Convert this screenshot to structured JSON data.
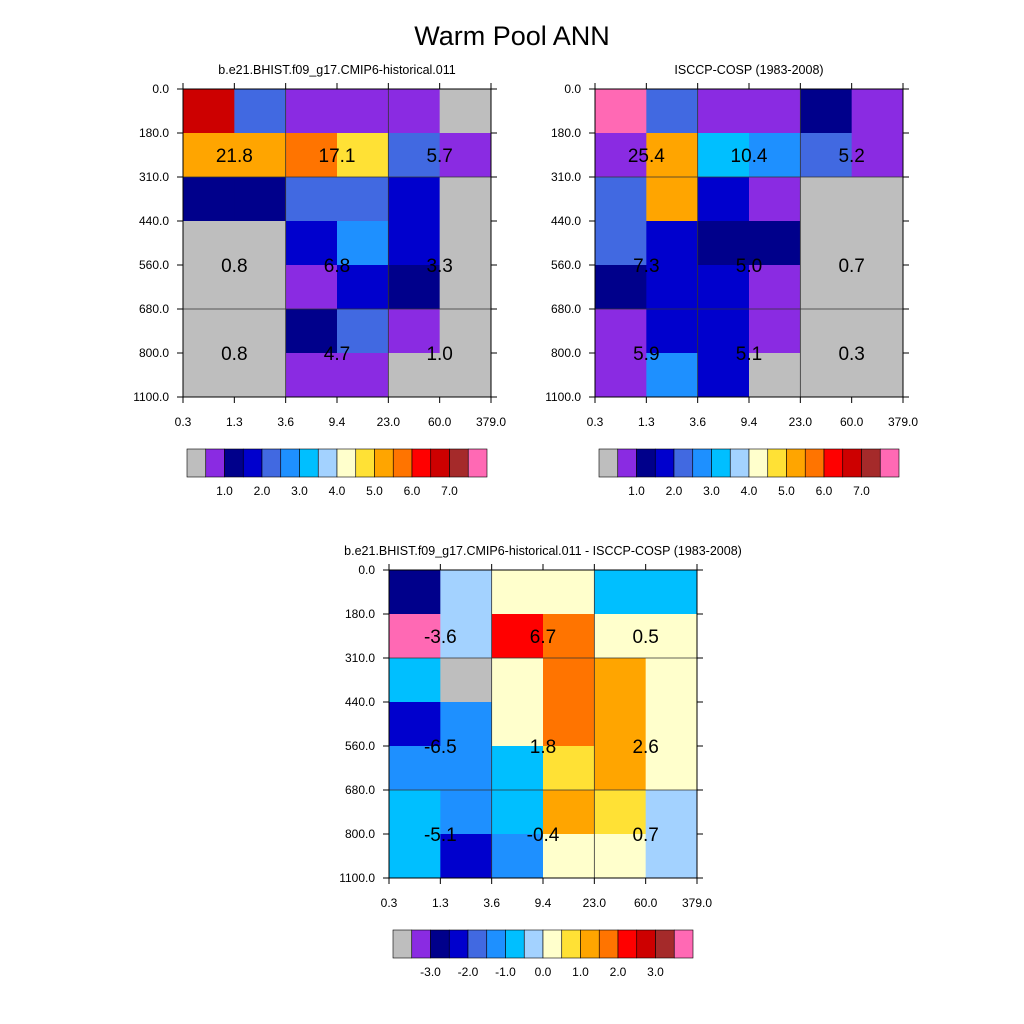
{
  "title": "Warm Pool ANN",
  "colors": {
    "gray": "#bebebe",
    "violet": "#8a2be2",
    "navy": "#00008b",
    "medblue": "#0000cd",
    "royalblue": "#4169e1",
    "dodger": "#1e90ff",
    "deepsky": "#00bfff",
    "lightsky": "#a3d2ff",
    "cream": "#ffffcc",
    "gold": "#ffe135",
    "orange": "#ffa500",
    "darkorange": "#ff7400",
    "red": "#ff0000",
    "crimson": "#cd0000",
    "brown": "#a52a2a",
    "pink": "#ff69b4"
  },
  "chart_data": [
    {
      "type": "heatmap",
      "title": "b.e21.BHIST.f09_g17.CMIP6-historical.011",
      "x_tick_labels": [
        "0.3",
        "1.3",
        "3.6",
        "9.4",
        "23.0",
        "60.0",
        "379.0"
      ],
      "y_tick_labels": [
        "0.0",
        "180.0",
        "310.0",
        "440.0",
        "560.0",
        "680.0",
        "800.0",
        "1100.0"
      ],
      "cells": [
        [
          "crimson",
          "royalblue",
          "violet",
          "violet",
          "violet",
          "gray"
        ],
        [
          "orange",
          "orange",
          "darkorange",
          "gold",
          "royalblue",
          "violet"
        ],
        [
          "navy",
          "navy",
          "royalblue",
          "royalblue",
          "medblue",
          "gray"
        ],
        [
          "gray",
          "gray",
          "medblue",
          "dodger",
          "medblue",
          "gray"
        ],
        [
          "gray",
          "gray",
          "violet",
          "medblue",
          "navy",
          "gray"
        ],
        [
          "gray",
          "gray",
          "navy",
          "royalblue",
          "violet",
          "gray"
        ],
        [
          "gray",
          "gray",
          "violet",
          "violet",
          "gray",
          "gray"
        ]
      ],
      "annotations": [
        {
          "row": 1,
          "col": 0,
          "text": "21.8"
        },
        {
          "row": 1,
          "col": 1,
          "text": "17.1"
        },
        {
          "row": 1,
          "col": 2,
          "text": "5.7"
        },
        {
          "row": 2,
          "col": 0,
          "text": "0.8"
        },
        {
          "row": 2,
          "col": 1,
          "text": "6.8"
        },
        {
          "row": 2,
          "col": 2,
          "text": "3.3"
        },
        {
          "row": 3,
          "col": 0,
          "text": "0.8"
        },
        {
          "row": 3,
          "col": 1,
          "text": "4.7"
        },
        {
          "row": 3,
          "col": 2,
          "text": "1.0"
        }
      ],
      "colorbar": {
        "colors": [
          "gray",
          "violet",
          "navy",
          "medblue",
          "royalblue",
          "dodger",
          "deepsky",
          "lightsky",
          "cream",
          "gold",
          "orange",
          "darkorange",
          "red",
          "crimson",
          "brown",
          "pink"
        ],
        "labels": [
          "1.0",
          "2.0",
          "3.0",
          "4.0",
          "5.0",
          "6.0",
          "7.0"
        ],
        "label_boundaries": [
          2,
          4,
          6,
          8,
          10,
          12,
          14
        ]
      }
    },
    {
      "type": "heatmap",
      "title": "ISCCP-COSP (1983-2008)",
      "x_tick_labels": [
        "0.3",
        "1.3",
        "3.6",
        "9.4",
        "23.0",
        "60.0",
        "379.0"
      ],
      "y_tick_labels": [
        "0.0",
        "180.0",
        "310.0",
        "440.0",
        "560.0",
        "680.0",
        "800.0",
        "1100.0"
      ],
      "cells": [
        [
          "pink",
          "royalblue",
          "violet",
          "violet",
          "navy",
          "violet"
        ],
        [
          "violet",
          "orange",
          "deepsky",
          "dodger",
          "royalblue",
          "violet"
        ],
        [
          "royalblue",
          "orange",
          "medblue",
          "violet",
          "gray",
          "gray"
        ],
        [
          "royalblue",
          "medblue",
          "navy",
          "navy",
          "gray",
          "gray"
        ],
        [
          "navy",
          "medblue",
          "medblue",
          "violet",
          "gray",
          "gray"
        ],
        [
          "violet",
          "medblue",
          "medblue",
          "violet",
          "gray",
          "gray"
        ],
        [
          "violet",
          "dodger",
          "medblue",
          "gray",
          "gray",
          "gray"
        ]
      ],
      "annotations": [
        {
          "row": 1,
          "col": 0,
          "text": "25.4"
        },
        {
          "row": 1,
          "col": 1,
          "text": "10.4"
        },
        {
          "row": 1,
          "col": 2,
          "text": "5.2"
        },
        {
          "row": 2,
          "col": 0,
          "text": "7.3"
        },
        {
          "row": 2,
          "col": 1,
          "text": "5.0"
        },
        {
          "row": 2,
          "col": 2,
          "text": "0.7"
        },
        {
          "row": 3,
          "col": 0,
          "text": "5.9"
        },
        {
          "row": 3,
          "col": 1,
          "text": "5.1"
        },
        {
          "row": 3,
          "col": 2,
          "text": "0.3"
        }
      ],
      "colorbar": {
        "colors": [
          "gray",
          "violet",
          "navy",
          "medblue",
          "royalblue",
          "dodger",
          "deepsky",
          "lightsky",
          "cream",
          "gold",
          "orange",
          "darkorange",
          "red",
          "crimson",
          "brown",
          "pink"
        ],
        "labels": [
          "1.0",
          "2.0",
          "3.0",
          "4.0",
          "5.0",
          "6.0",
          "7.0"
        ],
        "label_boundaries": [
          2,
          4,
          6,
          8,
          10,
          12,
          14
        ]
      }
    },
    {
      "type": "heatmap",
      "title": "b.e21.BHIST.f09_g17.CMIP6-historical.011 - ISCCP-COSP (1983-2008)",
      "x_tick_labels": [
        "0.3",
        "1.3",
        "3.6",
        "9.4",
        "23.0",
        "60.0",
        "379.0"
      ],
      "y_tick_labels": [
        "0.0",
        "180.0",
        "310.0",
        "440.0",
        "560.0",
        "680.0",
        "800.0",
        "1100.0"
      ],
      "cells": [
        [
          "navy",
          "lightsky",
          "cream",
          "cream",
          "deepsky",
          "deepsky"
        ],
        [
          "pink",
          "lightsky",
          "red",
          "darkorange",
          "cream",
          "cream"
        ],
        [
          "deepsky",
          "gray",
          "cream",
          "darkorange",
          "orange",
          "cream"
        ],
        [
          "medblue",
          "dodger",
          "cream",
          "darkorange",
          "orange",
          "cream"
        ],
        [
          "dodger",
          "dodger",
          "deepsky",
          "gold",
          "orange",
          "cream"
        ],
        [
          "deepsky",
          "dodger",
          "deepsky",
          "orange",
          "gold",
          "lightsky"
        ],
        [
          "deepsky",
          "medblue",
          "dodger",
          "cream",
          "cream",
          "lightsky"
        ]
      ],
      "annotations": [
        {
          "row": 1,
          "col": 0,
          "text": "-3.6"
        },
        {
          "row": 1,
          "col": 1,
          "text": "6.7"
        },
        {
          "row": 1,
          "col": 2,
          "text": "0.5"
        },
        {
          "row": 2,
          "col": 0,
          "text": "-6.5"
        },
        {
          "row": 2,
          "col": 1,
          "text": "1.8"
        },
        {
          "row": 2,
          "col": 2,
          "text": "2.6"
        },
        {
          "row": 3,
          "col": 0,
          "text": "-5.1"
        },
        {
          "row": 3,
          "col": 1,
          "text": "-0.4"
        },
        {
          "row": 3,
          "col": 2,
          "text": "0.7"
        }
      ],
      "colorbar": {
        "colors": [
          "gray",
          "violet",
          "navy",
          "medblue",
          "royalblue",
          "dodger",
          "deepsky",
          "lightsky",
          "cream",
          "gold",
          "orange",
          "darkorange",
          "red",
          "crimson",
          "brown",
          "pink"
        ],
        "labels": [
          "-3.0",
          "-2.0",
          "-1.0",
          "0.0",
          "1.0",
          "2.0",
          "3.0"
        ],
        "label_boundaries": [
          2,
          4,
          6,
          8,
          10,
          12,
          14
        ]
      }
    }
  ]
}
